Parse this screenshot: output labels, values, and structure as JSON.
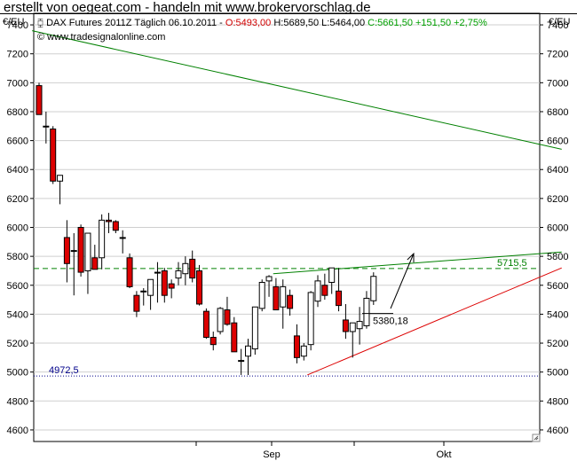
{
  "banner": "erstellt von oegeat.com - handeln mit www.brokervorschlag.de",
  "unit_left": "€/EU",
  "unit_right": "€/EU",
  "info": {
    "instrument": "DAX Futures 2011Z Täglich",
    "date": "06.10.2011",
    "open": "O:5493,00",
    "high": "H:5689,50",
    "low": "L:5464,00",
    "close": "C:5661,50 +151,50 +2,75%"
  },
  "source": "www.tradesignalonline.com",
  "colors": {
    "up": "#ffffff",
    "down": "#dd0000",
    "trend_green": "#008000",
    "trend_red": "#dd0000",
    "level_blue": "#00008b"
  },
  "chart_data": {
    "type": "candlestick",
    "y_ticks": [
      4600,
      4800,
      5000,
      5200,
      5400,
      5600,
      5800,
      6000,
      6200,
      6400,
      6600,
      6800,
      7000,
      7200,
      7400
    ],
    "ylim": [
      4520,
      7480
    ],
    "x_labels": [
      "Sep",
      "Okt"
    ],
    "candles": [
      {
        "o": 6980,
        "h": 7000,
        "l": 6780,
        "c": 6780
      },
      {
        "o": 6700,
        "h": 6800,
        "l": 6580,
        "c": 6700
      },
      {
        "o": 6680,
        "h": 6700,
        "l": 6300,
        "c": 6320
      },
      {
        "o": 6320,
        "h": 6360,
        "l": 6160,
        "c": 6360
      },
      {
        "o": 5930,
        "h": 6050,
        "l": 5620,
        "c": 5750
      },
      {
        "o": 5840,
        "h": 5960,
        "l": 5530,
        "c": 5840
      },
      {
        "o": 6000,
        "h": 6020,
        "l": 5660,
        "c": 5690
      },
      {
        "o": 5700,
        "h": 5960,
        "l": 5540,
        "c": 5960
      },
      {
        "o": 5790,
        "h": 5880,
        "l": 5710,
        "c": 5710
      },
      {
        "o": 5790,
        "h": 6090,
        "l": 5710,
        "c": 6050
      },
      {
        "o": 6050,
        "h": 6100,
        "l": 5960,
        "c": 6040
      },
      {
        "o": 6040,
        "h": 6050,
        "l": 5960,
        "c": 5980
      },
      {
        "o": 5930,
        "h": 5980,
        "l": 5820,
        "c": 5930
      },
      {
        "o": 5790,
        "h": 5820,
        "l": 5580,
        "c": 5590
      },
      {
        "o": 5530,
        "h": 5560,
        "l": 5380,
        "c": 5420
      },
      {
        "o": 5560,
        "h": 5580,
        "l": 5460,
        "c": 5560
      },
      {
        "o": 5530,
        "h": 5640,
        "l": 5430,
        "c": 5640
      },
      {
        "o": 5690,
        "h": 5760,
        "l": 5480,
        "c": 5690
      },
      {
        "o": 5700,
        "h": 5720,
        "l": 5480,
        "c": 5530
      },
      {
        "o": 5610,
        "h": 5640,
        "l": 5510,
        "c": 5580
      },
      {
        "o": 5650,
        "h": 5760,
        "l": 5600,
        "c": 5700
      },
      {
        "o": 5680,
        "h": 5800,
        "l": 5600,
        "c": 5750
      },
      {
        "o": 5780,
        "h": 5840,
        "l": 5620,
        "c": 5650
      },
      {
        "o": 5700,
        "h": 5740,
        "l": 5460,
        "c": 5470
      },
      {
        "o": 5420,
        "h": 5440,
        "l": 5230,
        "c": 5240
      },
      {
        "o": 5240,
        "h": 5280,
        "l": 5150,
        "c": 5190
      },
      {
        "o": 5280,
        "h": 5450,
        "l": 5260,
        "c": 5440
      },
      {
        "o": 5430,
        "h": 5520,
        "l": 5320,
        "c": 5330
      },
      {
        "o": 5340,
        "h": 5380,
        "l": 5140,
        "c": 5140
      },
      {
        "o": 5080,
        "h": 5160,
        "l": 4980,
        "c": 5080
      },
      {
        "o": 5110,
        "h": 5230,
        "l": 4980,
        "c": 5180
      },
      {
        "o": 5160,
        "h": 5450,
        "l": 5120,
        "c": 5450
      },
      {
        "o": 5440,
        "h": 5640,
        "l": 5420,
        "c": 5620
      },
      {
        "o": 5630,
        "h": 5670,
        "l": 5520,
        "c": 5660
      },
      {
        "o": 5590,
        "h": 5650,
        "l": 5430,
        "c": 5430
      },
      {
        "o": 5450,
        "h": 5640,
        "l": 5300,
        "c": 5590
      },
      {
        "o": 5530,
        "h": 5570,
        "l": 5390,
        "c": 5440
      },
      {
        "o": 5250,
        "h": 5330,
        "l": 5060,
        "c": 5100
      },
      {
        "o": 5110,
        "h": 5200,
        "l": 5080,
        "c": 5180
      },
      {
        "o": 5190,
        "h": 5560,
        "l": 5150,
        "c": 5550
      },
      {
        "o": 5490,
        "h": 5670,
        "l": 5450,
        "c": 5630
      },
      {
        "o": 5600,
        "h": 5680,
        "l": 5500,
        "c": 5530
      },
      {
        "o": 5620,
        "h": 5720,
        "l": 5540,
        "c": 5720
      },
      {
        "o": 5560,
        "h": 5720,
        "l": 5420,
        "c": 5460
      },
      {
        "o": 5360,
        "h": 5470,
        "l": 5230,
        "c": 5280
      },
      {
        "o": 5280,
        "h": 5340,
        "l": 5100,
        "c": 5340
      },
      {
        "o": 5300,
        "h": 5450,
        "l": 5190,
        "c": 5350
      },
      {
        "o": 5320,
        "h": 5560,
        "l": 5300,
        "c": 5510
      },
      {
        "o": 5493,
        "h": 5689.5,
        "l": 5464,
        "c": 5661.5
      }
    ],
    "lines": [
      {
        "type": "trend",
        "color": "green",
        "from": [
          -1,
          7360
        ],
        "to": [
          75,
          6540
        ]
      },
      {
        "type": "trend",
        "color": "green",
        "from": [
          33.6,
          5680
        ],
        "to": [
          75,
          5830
        ]
      },
      {
        "type": "trend",
        "color": "red",
        "from": [
          38.5,
          4980
        ],
        "to": [
          75,
          5720
        ]
      },
      {
        "type": "horizontal",
        "color": "green",
        "dashed": true,
        "value": 5715.5
      },
      {
        "type": "horizontal",
        "color": "blue",
        "dotted": true,
        "value": 4972.5
      }
    ],
    "labels": [
      {
        "text": "5715,5",
        "value": 5715.5,
        "color": "green"
      },
      {
        "text": "4972,5",
        "value": 4972.5,
        "color": "blue"
      },
      {
        "text": "5380,18",
        "value": 5380.18,
        "color": "black"
      }
    ]
  }
}
